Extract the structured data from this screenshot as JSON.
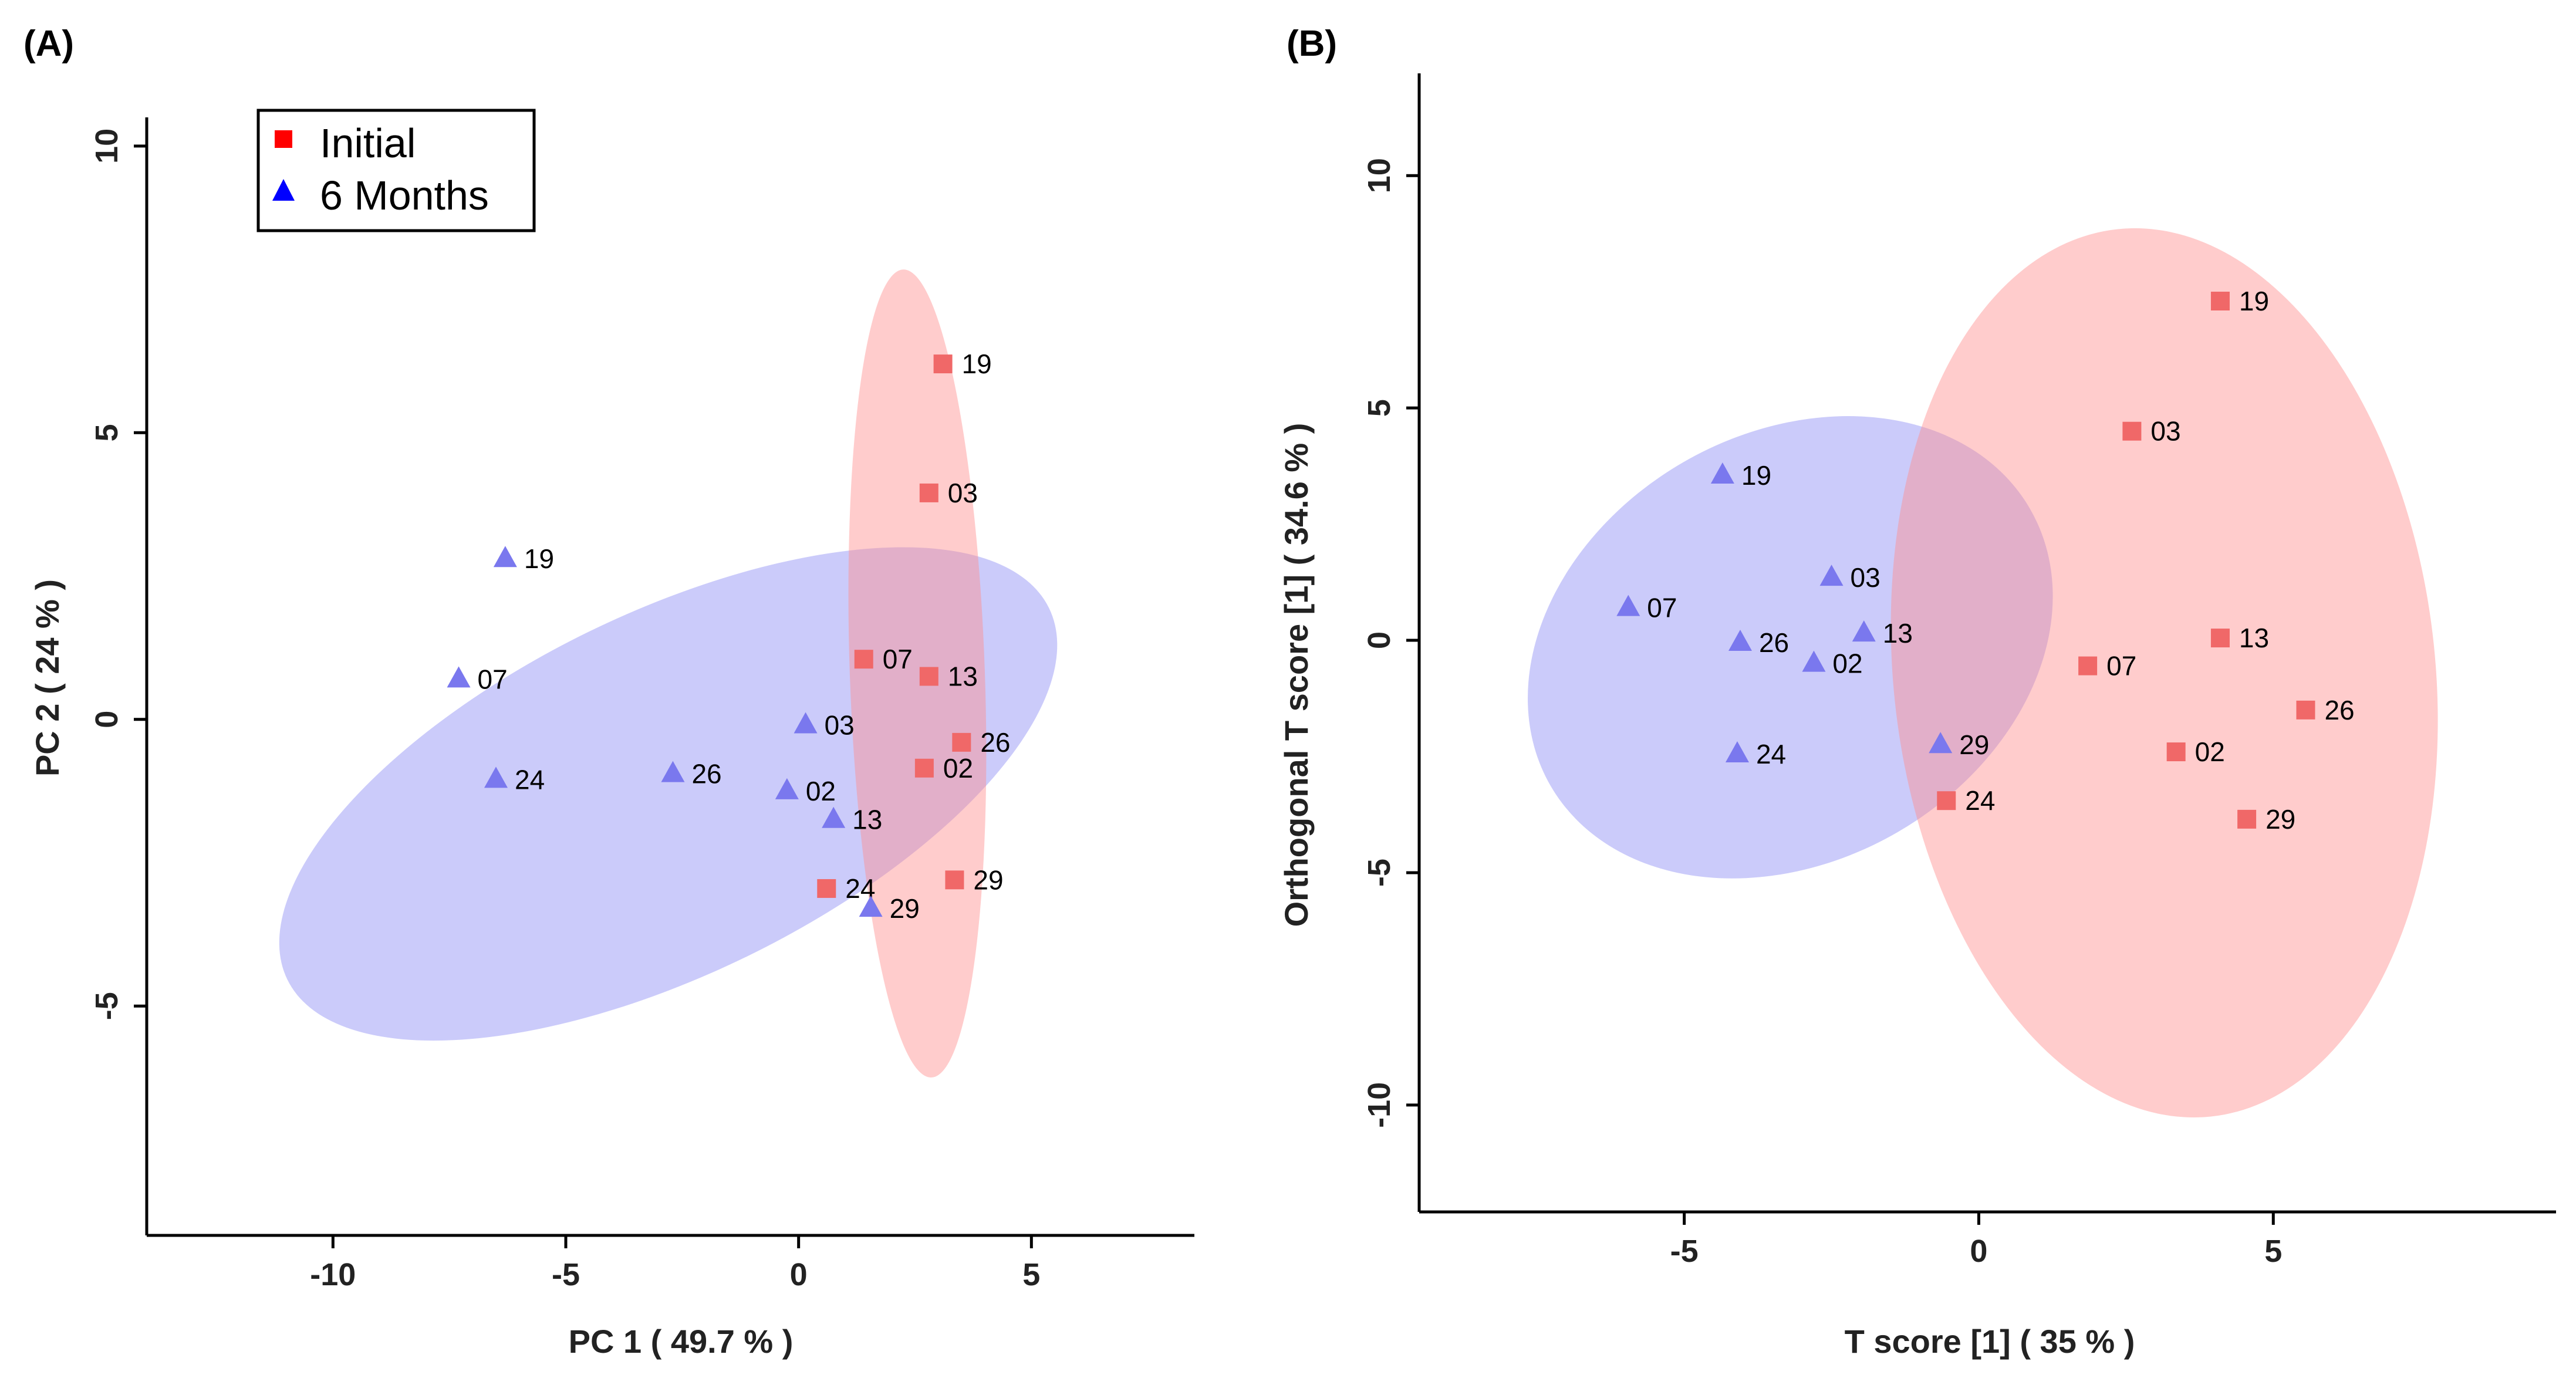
{
  "chart_data": [
    {
      "type": "scatter",
      "panel_label": "(A)",
      "title": "",
      "xlabel": "PC 1 ( 49.7 % )",
      "ylabel": "PC 2 ( 24 % )",
      "xlim": [
        -14,
        8.5
      ],
      "ylim": [
        -9,
        10.5
      ],
      "xticks": [
        -10,
        -5,
        0,
        5
      ],
      "yticks": [
        -5,
        0,
        5,
        10
      ],
      "legend": {
        "placement": "top-left",
        "entries": [
          {
            "label": "Initial",
            "marker": "square",
            "color": "#ff0000"
          },
          {
            "label": "6 Months",
            "marker": "triangle",
            "color": "#0000ff"
          }
        ]
      },
      "ellipses": [
        {
          "series": "6 Months",
          "color": "#8c8cf5",
          "opacity": 0.45,
          "cx": -2.8,
          "cy": -1.3,
          "rx": 9.1,
          "ry": 3.15,
          "angle_deg": -26
        },
        {
          "series": "Initial",
          "color": "#ff8f8f",
          "opacity": 0.45,
          "cx": 2.55,
          "cy": 0.8,
          "rx": 1.45,
          "ry": 7.05,
          "angle_deg": -2
        }
      ],
      "series": [
        {
          "name": "Initial",
          "marker": "square",
          "color": "#f06868",
          "points": [
            {
              "label": "19",
              "x": 3.1,
              "y": 6.2
            },
            {
              "label": "03",
              "x": 2.8,
              "y": 3.95
            },
            {
              "label": "07",
              "x": 1.4,
              "y": 1.05
            },
            {
              "label": "13",
              "x": 2.8,
              "y": 0.75
            },
            {
              "label": "26",
              "x": 3.5,
              "y": -0.4
            },
            {
              "label": "02",
              "x": 2.7,
              "y": -0.85
            },
            {
              "label": "29",
              "x": 3.35,
              "y": -2.8
            },
            {
              "label": "24",
              "x": 0.6,
              "y": -2.95
            }
          ]
        },
        {
          "name": "6 Months",
          "marker": "triangle",
          "color": "#7a78ee",
          "points": [
            {
              "label": "19",
              "x": -6.3,
              "y": 2.8
            },
            {
              "label": "07",
              "x": -7.3,
              "y": 0.7
            },
            {
              "label": "24",
              "x": -6.5,
              "y": -1.05
            },
            {
              "label": "26",
              "x": -2.7,
              "y": -0.95
            },
            {
              "label": "03",
              "x": 0.15,
              "y": -0.1
            },
            {
              "label": "02",
              "x": -0.25,
              "y": -1.25
            },
            {
              "label": "13",
              "x": 0.75,
              "y": -1.75
            },
            {
              "label": "29",
              "x": 1.55,
              "y": -3.3
            }
          ]
        }
      ]
    },
    {
      "type": "scatter",
      "panel_label": "(B)",
      "title": "",
      "xlabel": "T score [1] ( 35 % )",
      "ylabel": "Orthogonal T score [1] ( 34.6 % )",
      "xlim": [
        -9.5,
        9.8
      ],
      "ylim": [
        -12.3,
        12.2
      ],
      "xticks": [
        -5,
        0,
        5
      ],
      "yticks": [
        -10,
        -5,
        0,
        5,
        10
      ],
      "ellipses": [
        {
          "series": "6 Months",
          "color": "#8c8cf5",
          "opacity": 0.45,
          "cx": -3.2,
          "cy": -0.15,
          "rx": 4.7,
          "ry": 4.6,
          "angle_deg": -30
        },
        {
          "series": "Initial",
          "color": "#ff8f8f",
          "opacity": 0.45,
          "cx": 3.15,
          "cy": -0.7,
          "rx": 4.6,
          "ry": 9.6,
          "angle_deg": -6
        }
      ],
      "series": [
        {
          "name": "Initial",
          "marker": "square",
          "color": "#f06868",
          "points": [
            {
              "label": "19",
              "x": 4.1,
              "y": 7.3
            },
            {
              "label": "03",
              "x": 2.6,
              "y": 4.5
            },
            {
              "label": "13",
              "x": 4.1,
              "y": 0.05
            },
            {
              "label": "07",
              "x": 1.85,
              "y": -0.55
            },
            {
              "label": "26",
              "x": 5.55,
              "y": -1.5
            },
            {
              "label": "02",
              "x": 3.35,
              "y": -2.4
            },
            {
              "label": "24",
              "x": -0.55,
              "y": -3.45
            },
            {
              "label": "29",
              "x": 4.55,
              "y": -3.85
            }
          ]
        },
        {
          "name": "6 Months",
          "marker": "triangle",
          "color": "#7a78ee",
          "points": [
            {
              "label": "19",
              "x": -4.35,
              "y": 3.55
            },
            {
              "label": "07",
              "x": -5.95,
              "y": 0.7
            },
            {
              "label": "03",
              "x": -2.5,
              "y": 1.35
            },
            {
              "label": "13",
              "x": -1.95,
              "y": 0.15
            },
            {
              "label": "26",
              "x": -4.05,
              "y": -0.05
            },
            {
              "label": "02",
              "x": -2.8,
              "y": -0.5
            },
            {
              "label": "29",
              "x": -0.65,
              "y": -2.25
            },
            {
              "label": "24",
              "x": -4.1,
              "y": -2.45
            }
          ]
        }
      ]
    }
  ]
}
